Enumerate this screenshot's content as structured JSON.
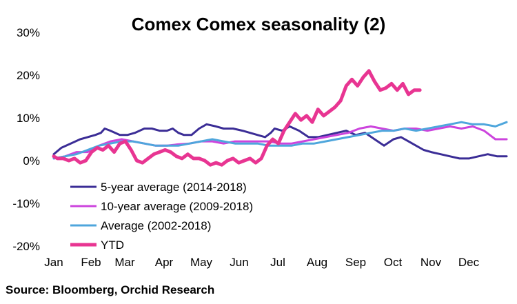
{
  "chart_data": {
    "type": "line",
    "title": "Comex Comex seasonality (2)",
    "xlabel": "",
    "ylabel": "",
    "x_months": [
      "Jan",
      "Feb",
      "Mar",
      "Apr",
      "May",
      "Jun",
      "Jul",
      "Aug",
      "Sep",
      "Oct",
      "Nov",
      "Dec"
    ],
    "y_ticks": [
      "30%",
      "20%",
      "10%",
      "0%",
      "-10%",
      "-20%"
    ],
    "ylim": [
      -20,
      30
    ],
    "y_unit": "%",
    "legend_position": "bottom-left",
    "grid": false,
    "series": [
      {
        "name": "5-year average (2014-2018)",
        "color": "#3b2d96",
        "width": 3,
        "x": [
          0,
          0.2,
          0.45,
          0.7,
          0.9,
          1.1,
          1.25,
          1.35,
          1.5,
          1.75,
          1.95,
          2.15,
          2.4,
          2.6,
          2.8,
          3.0,
          3.15,
          3.3,
          3.45,
          3.65,
          3.85,
          4.05,
          4.3,
          4.5,
          4.75,
          5.0,
          5.2,
          5.4,
          5.6,
          5.75,
          5.85,
          6.05,
          6.25,
          6.5,
          6.75,
          7.0,
          7.25,
          7.5,
          7.75,
          8.0,
          8.25,
          8.5,
          8.75,
          9.0,
          9.2,
          9.4,
          9.6,
          9.8,
          10.0,
          10.25,
          10.5,
          10.75,
          11.0,
          11.25,
          11.5,
          11.75,
          12.0
        ],
        "y": [
          1.5,
          3.0,
          4.0,
          5.0,
          5.5,
          6.0,
          6.5,
          7.5,
          7.0,
          6.0,
          6.0,
          6.5,
          7.5,
          7.5,
          7.0,
          7.0,
          7.5,
          6.5,
          6.0,
          6.0,
          7.5,
          8.5,
          8.0,
          7.5,
          7.5,
          7.0,
          6.5,
          6.0,
          5.5,
          6.5,
          7.5,
          7.0,
          8.0,
          7.0,
          5.5,
          5.5,
          6.0,
          6.5,
          7.0,
          6.0,
          6.5,
          5.0,
          3.5,
          5.0,
          5.5,
          4.5,
          3.5,
          2.5,
          2.0,
          1.5,
          1.0,
          0.5,
          0.5,
          1.0,
          1.5,
          1.0,
          1.0
        ]
      },
      {
        "name": "10-year average (2009-2018)",
        "color": "#cc44dd",
        "width": 3,
        "x": [
          0,
          0.3,
          0.6,
          0.9,
          1.2,
          1.5,
          1.8,
          2.1,
          2.4,
          2.7,
          3.0,
          3.3,
          3.6,
          3.9,
          4.2,
          4.5,
          4.8,
          5.1,
          5.4,
          5.7,
          6.0,
          6.3,
          6.6,
          6.9,
          7.2,
          7.5,
          7.8,
          8.1,
          8.4,
          8.7,
          9.0,
          9.3,
          9.6,
          9.9,
          10.2,
          10.5,
          10.8,
          11.1,
          11.4,
          11.7,
          12.0
        ],
        "y": [
          0.5,
          1.0,
          2.0,
          2.0,
          3.5,
          4.5,
          5.0,
          4.5,
          4.0,
          3.5,
          3.5,
          3.8,
          4.0,
          4.5,
          4.5,
          4.0,
          4.5,
          4.5,
          4.5,
          4.5,
          4.0,
          4.0,
          4.5,
          5.0,
          5.5,
          6.0,
          6.5,
          7.5,
          8.0,
          7.5,
          7.0,
          7.5,
          7.5,
          7.0,
          7.5,
          8.0,
          7.5,
          8.0,
          7.0,
          5.0,
          5.0
        ]
      },
      {
        "name": "Average (2002-2018)",
        "color": "#4ea6dc",
        "width": 3,
        "x": [
          0,
          0.3,
          0.6,
          0.9,
          1.2,
          1.5,
          1.8,
          2.1,
          2.4,
          2.7,
          3.0,
          3.3,
          3.6,
          3.9,
          4.2,
          4.5,
          4.8,
          5.1,
          5.4,
          5.7,
          6.0,
          6.3,
          6.6,
          6.9,
          7.2,
          7.5,
          7.8,
          8.1,
          8.4,
          8.7,
          9.0,
          9.3,
          9.6,
          9.9,
          10.2,
          10.5,
          10.8,
          11.1,
          11.4,
          11.7,
          12.0
        ],
        "y": [
          0.5,
          1.0,
          1.5,
          2.5,
          3.5,
          4.0,
          4.5,
          4.5,
          4.0,
          3.5,
          3.5,
          3.5,
          4.0,
          4.5,
          5.0,
          4.5,
          4.0,
          4.0,
          4.0,
          3.5,
          3.5,
          3.5,
          4.0,
          4.0,
          4.5,
          5.0,
          5.5,
          6.0,
          6.5,
          7.0,
          7.0,
          7.5,
          7.0,
          7.5,
          8.0,
          8.5,
          9.0,
          8.5,
          8.5,
          8.0,
          9.0
        ]
      },
      {
        "name": "YTD",
        "color": "#e83592",
        "width": 5,
        "x": [
          0,
          0.1,
          0.25,
          0.4,
          0.55,
          0.7,
          0.85,
          1.0,
          1.15,
          1.3,
          1.45,
          1.6,
          1.75,
          1.9,
          2.05,
          2.2,
          2.35,
          2.5,
          2.65,
          2.8,
          2.95,
          3.1,
          3.25,
          3.4,
          3.55,
          3.7,
          3.85,
          4.0,
          4.15,
          4.3,
          4.45,
          4.6,
          4.75,
          4.9,
          5.05,
          5.2,
          5.35,
          5.5,
          5.65,
          5.8,
          5.95,
          6.1,
          6.25,
          6.4,
          6.55,
          6.7,
          6.85,
          7.0,
          7.15,
          7.3,
          7.45,
          7.6,
          7.75,
          7.9,
          8.05,
          8.2,
          8.35,
          8.5,
          8.65,
          8.8,
          8.95,
          9.1,
          9.25,
          9.4,
          9.55,
          9.7
        ],
        "y": [
          1.0,
          0.5,
          0.5,
          0.0,
          0.5,
          -0.5,
          0.0,
          2.0,
          3.0,
          2.5,
          3.5,
          2.0,
          4.0,
          4.5,
          2.5,
          0.0,
          -0.5,
          0.5,
          1.5,
          2.0,
          2.5,
          2.0,
          1.0,
          0.5,
          1.5,
          0.5,
          0.5,
          0.0,
          -1.0,
          -0.5,
          -1.0,
          0.0,
          0.5,
          -0.5,
          0.0,
          0.5,
          -0.5,
          0.5,
          3.5,
          5.0,
          4.0,
          7.0,
          9.0,
          11.0,
          9.5,
          10.5,
          9.0,
          12.0,
          10.5,
          11.5,
          12.5,
          14.0,
          17.5,
          19.0,
          17.5,
          19.5,
          21.0,
          18.5,
          16.5,
          17.0,
          18.0,
          16.5,
          18.0,
          15.5,
          16.5,
          16.5
        ]
      }
    ],
    "source": "Source: Bloomberg, Orchid Research"
  }
}
